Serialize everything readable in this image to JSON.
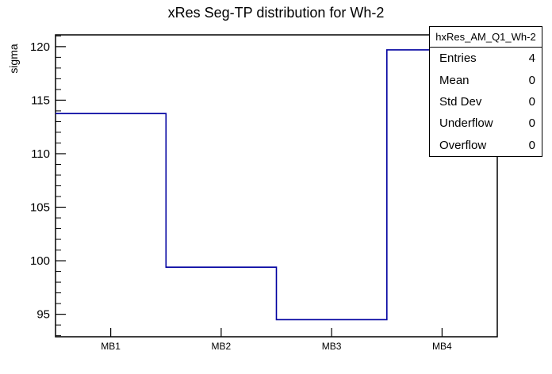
{
  "chart_data": {
    "type": "bar",
    "style": "root-step-histogram",
    "title": "xRes Seg-TP distribution for Wh-2",
    "xlabel": "",
    "ylabel": "sigma",
    "categories": [
      "MB1",
      "MB2",
      "MB3",
      "MB4"
    ],
    "values": [
      113.75,
      99.4,
      94.5,
      119.7
    ],
    "ylim": [
      92.9,
      121.1
    ],
    "y_major_ticks": [
      95,
      100,
      105,
      110,
      115,
      120
    ],
    "y_minor_tick_step": 1,
    "grid": false,
    "legend_position": "none",
    "line_color": "#0000a0",
    "frame_color": "#000000",
    "background_color": "#ffffff"
  },
  "stats": {
    "title": "hxRes_AM_Q1_Wh-2",
    "rows": [
      {
        "label": "Entries",
        "value": "4"
      },
      {
        "label": "Mean",
        "value": "0"
      },
      {
        "label": "Std Dev",
        "value": "0"
      },
      {
        "label": "Underflow",
        "value": "0"
      },
      {
        "label": "Overflow",
        "value": "0"
      }
    ]
  }
}
